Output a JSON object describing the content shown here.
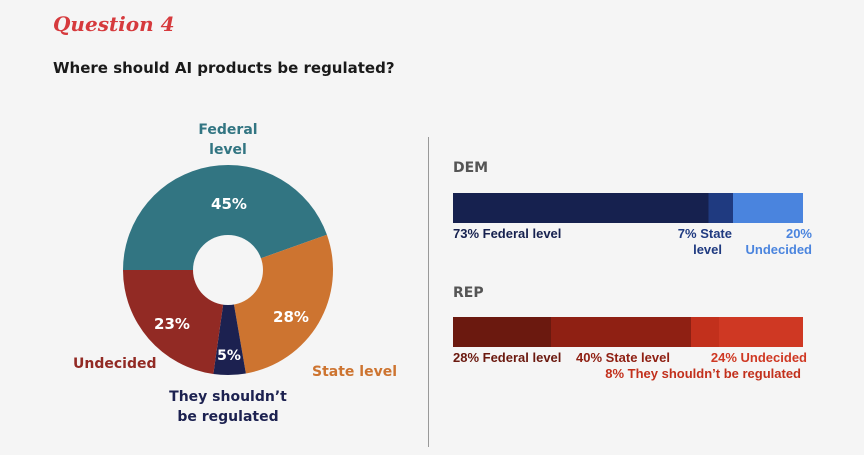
{
  "header": {
    "question_number": "Question 4",
    "question": "Where should AI products be regulated?"
  },
  "chart_data": [
    {
      "type": "pie",
      "donut": true,
      "categories": [
        "Federal level",
        "State level",
        "They shouldn’t be regulated",
        "Undecided"
      ],
      "values": [
        45,
        28,
        5,
        23
      ],
      "value_labels": [
        "45%",
        "28%",
        "5%",
        "23%"
      ],
      "colors": [
        "#327582",
        "#cd7430",
        "#1c2150",
        "#922a24"
      ],
      "label_text": {
        "federal": [
          "Federal",
          "level"
        ],
        "state": "State level",
        "not": [
          "They shouldn’t",
          "be regulated"
        ],
        "undecided": "Undecided"
      }
    },
    {
      "type": "bar",
      "orientation": "horizontal",
      "stacked": true,
      "xlim": [
        0,
        100
      ],
      "rows": [
        {
          "name": "DEM",
          "segments": [
            {
              "category": "Federal level",
              "value": 73,
              "color": "#16214f"
            },
            {
              "category": "State level",
              "value": 7,
              "color": "#1f3a80"
            },
            {
              "category": "Undecided",
              "value": 20,
              "color": "#4a84de"
            }
          ],
          "labels": {
            "federal": "73% Federal level",
            "state": [
              "7% State",
              "level"
            ],
            "undecided": [
              "20%",
              "Undecided"
            ]
          }
        },
        {
          "name": "REP",
          "segments": [
            {
              "category": "Federal level",
              "value": 28,
              "color": "#6b190f"
            },
            {
              "category": "State level",
              "value": 40,
              "color": "#8f2013"
            },
            {
              "category": "They shouldn’t be regulated",
              "value": 8,
              "color": "#c2301c"
            },
            {
              "category": "Undecided",
              "value": 24,
              "color": "#cf3823"
            }
          ],
          "labels": {
            "federal": "28% Federal level",
            "state": "40% State level",
            "undecided": "24% Undecided",
            "not": "8% They shouldn’t be regulated"
          }
        }
      ]
    }
  ]
}
